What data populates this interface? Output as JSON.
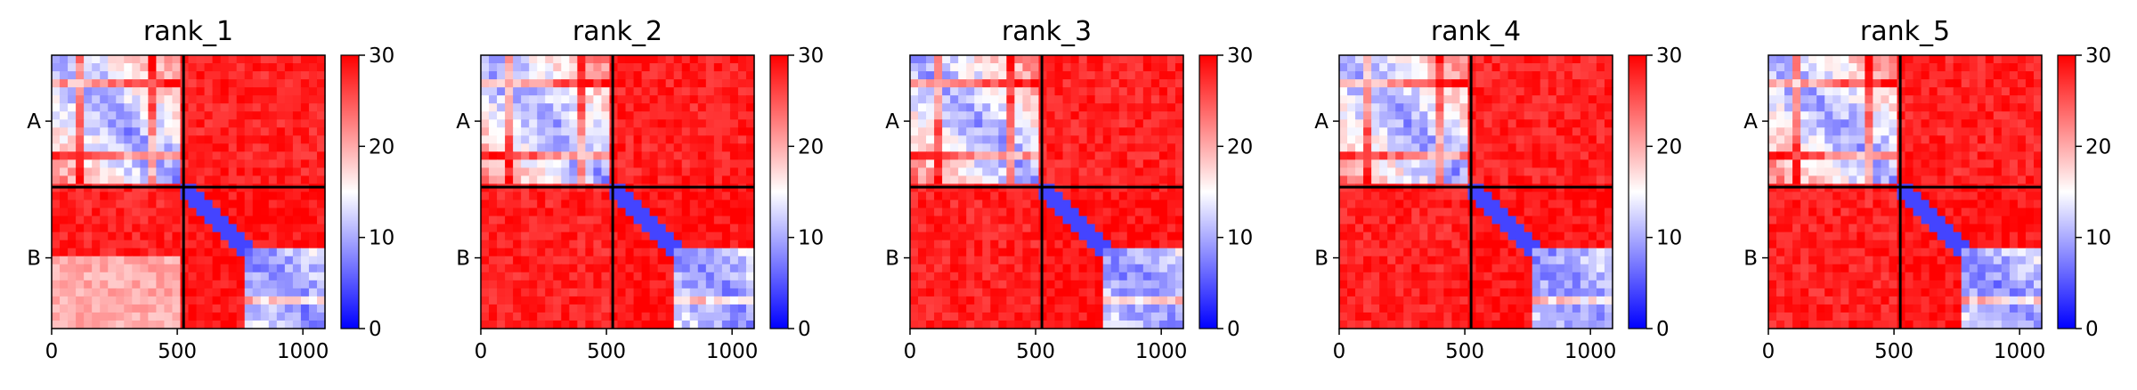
{
  "chart_data": {
    "type": "heatmap",
    "description_colormap": "bwr",
    "x_ticks": [
      0,
      500,
      1000
    ],
    "y_ticks": [
      "A",
      "B"
    ],
    "x_range": [
      0,
      1088
    ],
    "y_range": [
      0,
      1088
    ],
    "chain_boundary": 525,
    "colorbar": {
      "min": 0,
      "max": 30,
      "ticks": [
        0,
        10,
        20,
        30
      ]
    },
    "colors": {
      "low": "#0000ff",
      "mid": "#ffffff",
      "high": "#ff0000"
    },
    "panels": [
      {
        "title": "rank_1"
      },
      {
        "title": "rank_2"
      },
      {
        "title": "rank_3"
      },
      {
        "title": "rank_4"
      },
      {
        "title": "rank_5"
      }
    ]
  }
}
